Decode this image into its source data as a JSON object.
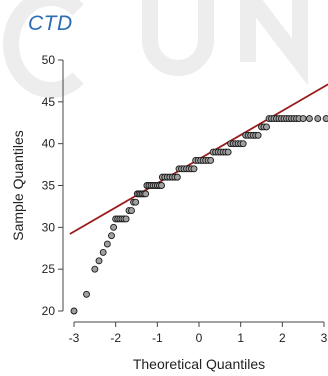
{
  "panel_title": "CTD",
  "colors": {
    "title": "#2e6db4",
    "fit_line": "#9b1c1c",
    "point_fill": "#a0a0a0",
    "point_stroke": "#1a1a1a",
    "axis": "#444444",
    "watermark": "#ededed"
  },
  "chart_data": {
    "type": "scatter",
    "title": "",
    "xlabel": "Theoretical Quantiles",
    "ylabel": "Sample Quantiles",
    "xlim": [
      -3,
      3
    ],
    "ylim": [
      20,
      50
    ],
    "x_ticks": [
      -3,
      -2,
      -1,
      0,
      1,
      2,
      3
    ],
    "y_ticks": [
      20,
      25,
      30,
      35,
      40,
      45,
      50
    ],
    "grid": false,
    "reference_line": {
      "x": [
        -3.1,
        3.1
      ],
      "y": [
        29.2,
        47.1
      ]
    },
    "points": [
      {
        "x": -3.0,
        "y": 20
      },
      {
        "x": -2.7,
        "y": 22
      },
      {
        "x": -2.5,
        "y": 25
      },
      {
        "x": -2.4,
        "y": 26
      },
      {
        "x": -2.3,
        "y": 27
      },
      {
        "x": -2.2,
        "y": 28
      },
      {
        "x": -2.1,
        "y": 29
      },
      {
        "x": -2.05,
        "y": 30
      },
      {
        "x": -2.0,
        "y": 31
      },
      {
        "x": -1.95,
        "y": 31
      },
      {
        "x": -1.9,
        "y": 31
      },
      {
        "x": -1.85,
        "y": 31
      },
      {
        "x": -1.8,
        "y": 31
      },
      {
        "x": -1.75,
        "y": 31
      },
      {
        "x": -1.68,
        "y": 32
      },
      {
        "x": -1.62,
        "y": 32
      },
      {
        "x": -1.57,
        "y": 33
      },
      {
        "x": -1.52,
        "y": 33
      },
      {
        "x": -1.48,
        "y": 34
      },
      {
        "x": -1.44,
        "y": 34
      },
      {
        "x": -1.4,
        "y": 34
      },
      {
        "x": -1.36,
        "y": 34
      },
      {
        "x": -1.32,
        "y": 34
      },
      {
        "x": -1.28,
        "y": 34
      },
      {
        "x": -1.25,
        "y": 35
      },
      {
        "x": -1.2,
        "y": 35
      },
      {
        "x": -1.15,
        "y": 35
      },
      {
        "x": -1.1,
        "y": 35
      },
      {
        "x": -1.05,
        "y": 35
      },
      {
        "x": -1.0,
        "y": 35
      },
      {
        "x": -0.95,
        "y": 35
      },
      {
        "x": -0.9,
        "y": 35
      },
      {
        "x": -0.88,
        "y": 36
      },
      {
        "x": -0.82,
        "y": 36
      },
      {
        "x": -0.76,
        "y": 36
      },
      {
        "x": -0.7,
        "y": 36
      },
      {
        "x": -0.64,
        "y": 36
      },
      {
        "x": -0.58,
        "y": 36
      },
      {
        "x": -0.52,
        "y": 36
      },
      {
        "x": -0.48,
        "y": 37
      },
      {
        "x": -0.42,
        "y": 37
      },
      {
        "x": -0.36,
        "y": 37
      },
      {
        "x": -0.3,
        "y": 37
      },
      {
        "x": -0.24,
        "y": 37
      },
      {
        "x": -0.18,
        "y": 37
      },
      {
        "x": -0.12,
        "y": 37
      },
      {
        "x": -0.08,
        "y": 38
      },
      {
        "x": -0.02,
        "y": 38
      },
      {
        "x": 0.04,
        "y": 38
      },
      {
        "x": 0.1,
        "y": 38
      },
      {
        "x": 0.16,
        "y": 38
      },
      {
        "x": 0.22,
        "y": 38
      },
      {
        "x": 0.28,
        "y": 38
      },
      {
        "x": 0.34,
        "y": 39
      },
      {
        "x": 0.4,
        "y": 39
      },
      {
        "x": 0.46,
        "y": 39
      },
      {
        "x": 0.52,
        "y": 39
      },
      {
        "x": 0.58,
        "y": 39
      },
      {
        "x": 0.64,
        "y": 39
      },
      {
        "x": 0.7,
        "y": 39
      },
      {
        "x": 0.76,
        "y": 40
      },
      {
        "x": 0.82,
        "y": 40
      },
      {
        "x": 0.88,
        "y": 40
      },
      {
        "x": 0.94,
        "y": 40
      },
      {
        "x": 1.0,
        "y": 40
      },
      {
        "x": 1.06,
        "y": 40
      },
      {
        "x": 1.12,
        "y": 41
      },
      {
        "x": 1.18,
        "y": 41
      },
      {
        "x": 1.24,
        "y": 41
      },
      {
        "x": 1.3,
        "y": 41
      },
      {
        "x": 1.36,
        "y": 41
      },
      {
        "x": 1.42,
        "y": 41
      },
      {
        "x": 1.5,
        "y": 42
      },
      {
        "x": 1.56,
        "y": 42
      },
      {
        "x": 1.62,
        "y": 42
      },
      {
        "x": 1.68,
        "y": 43
      },
      {
        "x": 1.74,
        "y": 43
      },
      {
        "x": 1.8,
        "y": 43
      },
      {
        "x": 1.86,
        "y": 43
      },
      {
        "x": 1.92,
        "y": 43
      },
      {
        "x": 1.98,
        "y": 43
      },
      {
        "x": 2.04,
        "y": 43
      },
      {
        "x": 2.1,
        "y": 43
      },
      {
        "x": 2.16,
        "y": 43
      },
      {
        "x": 2.22,
        "y": 43
      },
      {
        "x": 2.28,
        "y": 43
      },
      {
        "x": 2.34,
        "y": 43
      },
      {
        "x": 2.4,
        "y": 43
      },
      {
        "x": 2.5,
        "y": 43
      },
      {
        "x": 2.65,
        "y": 43
      },
      {
        "x": 2.85,
        "y": 43
      },
      {
        "x": 3.05,
        "y": 43
      }
    ]
  }
}
